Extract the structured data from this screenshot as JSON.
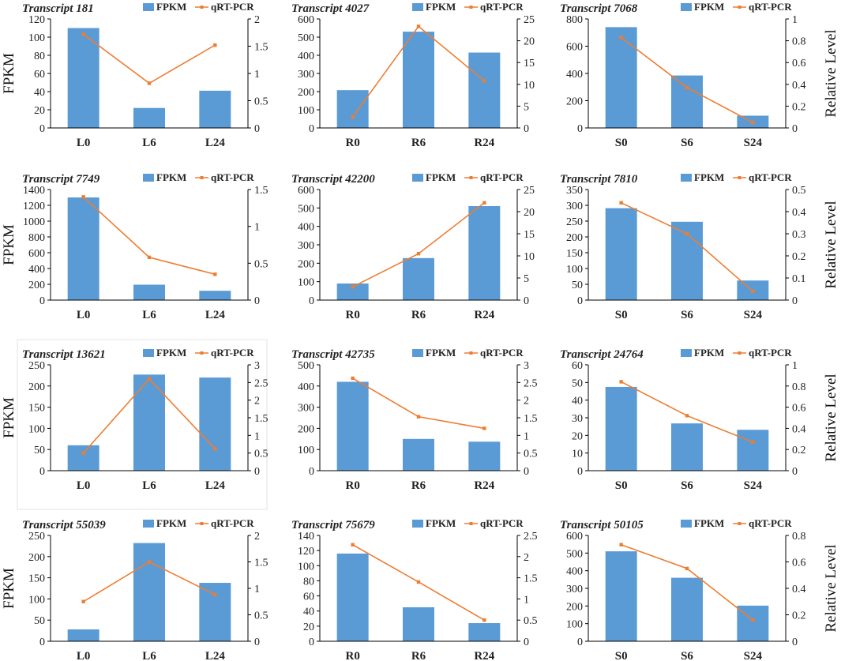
{
  "figure": {
    "left_axis_label": "FPKM",
    "right_axis_label": "Relative Level",
    "legend": {
      "bar": "FPKM",
      "line": "qRT-PCR"
    },
    "colors": {
      "bar": "#5b9bd5",
      "line": "#ed7d31",
      "axis": "#000000"
    }
  },
  "chart_data": [
    {
      "type": "bar+line",
      "title": "Transcript 181",
      "categories": [
        "L0",
        "L6",
        "L24"
      ],
      "series": [
        {
          "name": "FPKM",
          "axis": "left",
          "values": [
            110,
            22,
            41
          ]
        },
        {
          "name": "qRT-PCR",
          "axis": "right",
          "values": [
            1.72,
            0.82,
            1.52
          ]
        }
      ],
      "ylim_left": [
        0,
        120
      ],
      "yticks_left": [
        "0",
        "20",
        "40",
        "60",
        "80",
        "100",
        "120"
      ],
      "ylim_right": [
        0,
        2
      ],
      "yticks_right": [
        "0",
        "0.5",
        "1",
        "1.5",
        "2"
      ]
    },
    {
      "type": "bar+line",
      "title": "Transcript 4027",
      "categories": [
        "R0",
        "R6",
        "R24"
      ],
      "series": [
        {
          "name": "FPKM",
          "axis": "left",
          "values": [
            208,
            530,
            415
          ]
        },
        {
          "name": "qRT-PCR",
          "axis": "right",
          "values": [
            2.5,
            23.3,
            10.8
          ]
        }
      ],
      "ylim_left": [
        0,
        600
      ],
      "yticks_left": [
        "0",
        "100",
        "200",
        "300",
        "400",
        "500",
        "600"
      ],
      "ylim_right": [
        0,
        25
      ],
      "yticks_right": [
        "0",
        "5",
        "10",
        "15",
        "20",
        "25"
      ]
    },
    {
      "type": "bar+line",
      "title": "Transcript 7068",
      "categories": [
        "S0",
        "S6",
        "S24"
      ],
      "series": [
        {
          "name": "FPKM",
          "axis": "left",
          "values": [
            740,
            385,
            90
          ]
        },
        {
          "name": "qRT-PCR",
          "axis": "right",
          "values": [
            0.83,
            0.37,
            0.05
          ]
        }
      ],
      "ylim_left": [
        0,
        800
      ],
      "yticks_left": [
        "0",
        "200",
        "400",
        "600",
        "800"
      ],
      "ylim_right": [
        0,
        1
      ],
      "yticks_right": [
        "0",
        "0.2",
        "0.4",
        "0.6",
        "0.8",
        "1"
      ]
    },
    {
      "type": "bar+line",
      "title": "Transcript 7749",
      "categories": [
        "L0",
        "L6",
        "L24"
      ],
      "series": [
        {
          "name": "FPKM",
          "axis": "left",
          "values": [
            1300,
            195,
            118
          ]
        },
        {
          "name": "qRT-PCR",
          "axis": "right",
          "values": [
            1.4,
            0.58,
            0.35
          ]
        }
      ],
      "ylim_left": [
        0,
        1400
      ],
      "yticks_left": [
        "0",
        "200",
        "400",
        "600",
        "800",
        "1000",
        "1200",
        "1400"
      ],
      "ylim_right": [
        0,
        1.5
      ],
      "yticks_right": [
        "0",
        "0.5",
        "1",
        "1.5"
      ]
    },
    {
      "type": "bar+line",
      "title": "Transcript 42200",
      "categories": [
        "R0",
        "R6",
        "R24"
      ],
      "series": [
        {
          "name": "FPKM",
          "axis": "left",
          "values": [
            90,
            228,
            510
          ]
        },
        {
          "name": "qRT-PCR",
          "axis": "right",
          "values": [
            3.0,
            10.5,
            22.0
          ]
        }
      ],
      "ylim_left": [
        0,
        600
      ],
      "yticks_left": [
        "0",
        "100",
        "200",
        "300",
        "400",
        "500",
        "600"
      ],
      "ylim_right": [
        0,
        25
      ],
      "yticks_right": [
        "0",
        "5",
        "10",
        "15",
        "20",
        "25"
      ]
    },
    {
      "type": "bar+line",
      "title": "Transcript 7810",
      "categories": [
        "S0",
        "S6",
        "S24"
      ],
      "series": [
        {
          "name": "FPKM",
          "axis": "left",
          "values": [
            291,
            248,
            62
          ]
        },
        {
          "name": "qRT-PCR",
          "axis": "right",
          "values": [
            0.44,
            0.3,
            0.04
          ]
        }
      ],
      "ylim_left": [
        0,
        350
      ],
      "yticks_left": [
        "0",
        "50",
        "100",
        "150",
        "200",
        "250",
        "300",
        "350"
      ],
      "ylim_right": [
        0,
        0.5
      ],
      "yticks_right": [
        "0",
        "0.1",
        "0.2",
        "0.3",
        "0.4",
        "0.5"
      ]
    },
    {
      "type": "bar+line",
      "title": "Transcript 13621",
      "categories": [
        "L0",
        "L6",
        "L24"
      ],
      "series": [
        {
          "name": "FPKM",
          "axis": "left",
          "values": [
            60,
            227,
            220
          ]
        },
        {
          "name": "qRT-PCR",
          "axis": "right",
          "values": [
            0.5,
            2.6,
            0.62
          ]
        }
      ],
      "ylim_left": [
        0,
        250
      ],
      "yticks_left": [
        "0",
        "50",
        "100",
        "150",
        "200",
        "250"
      ],
      "ylim_right": [
        0,
        3
      ],
      "yticks_right": [
        "0",
        "0.5",
        "1",
        "1.5",
        "2",
        "2.5",
        "3"
      ]
    },
    {
      "type": "bar+line",
      "title": "Transcript 42735",
      "categories": [
        "R0",
        "R6",
        "R24"
      ],
      "series": [
        {
          "name": "FPKM",
          "axis": "left",
          "values": [
            420,
            150,
            137
          ]
        },
        {
          "name": "qRT-PCR",
          "axis": "right",
          "values": [
            2.62,
            1.53,
            1.2
          ]
        }
      ],
      "ylim_left": [
        0,
        500
      ],
      "yticks_left": [
        "0",
        "100",
        "200",
        "300",
        "400",
        "500"
      ],
      "ylim_right": [
        0,
        3
      ],
      "yticks_right": [
        "0",
        "0.5",
        "1",
        "1.5",
        "2",
        "2.5",
        "3"
      ]
    },
    {
      "type": "bar+line",
      "title": "Transcript 24764",
      "categories": [
        "S0",
        "S6",
        "S24"
      ],
      "series": [
        {
          "name": "FPKM",
          "axis": "left",
          "values": [
            47.5,
            26.8,
            23.2
          ]
        },
        {
          "name": "qRT-PCR",
          "axis": "right",
          "values": [
            0.84,
            0.52,
            0.27
          ]
        }
      ],
      "ylim_left": [
        0,
        60
      ],
      "yticks_left": [
        "0",
        "10",
        "20",
        "30",
        "40",
        "50",
        "60"
      ],
      "ylim_right": [
        0,
        1
      ],
      "yticks_right": [
        "0",
        "0.2",
        "0.4",
        "0.6",
        "0.8",
        "1"
      ]
    },
    {
      "type": "bar+line",
      "title": "Transcript 55039",
      "categories": [
        "L0",
        "L6",
        "L24"
      ],
      "series": [
        {
          "name": "FPKM",
          "axis": "left",
          "values": [
            28,
            232,
            138
          ]
        },
        {
          "name": "qRT-PCR",
          "axis": "right",
          "values": [
            0.75,
            1.5,
            0.88
          ]
        }
      ],
      "ylim_left": [
        0,
        250
      ],
      "yticks_left": [
        "0",
        "50",
        "100",
        "150",
        "200",
        "250"
      ],
      "ylim_right": [
        0,
        2
      ],
      "yticks_right": [
        "0",
        "0.5",
        "1",
        "1.5",
        "2"
      ]
    },
    {
      "type": "bar+line",
      "title": "Transcript 75679",
      "categories": [
        "R0",
        "R6",
        "R24"
      ],
      "series": [
        {
          "name": "FPKM",
          "axis": "left",
          "values": [
            116,
            45,
            24
          ]
        },
        {
          "name": "qRT-PCR",
          "axis": "right",
          "values": [
            2.28,
            1.4,
            0.5
          ]
        }
      ],
      "ylim_left": [
        0,
        140
      ],
      "yticks_left": [
        "0",
        "20",
        "40",
        "60",
        "80",
        "100",
        "120",
        "140"
      ],
      "ylim_right": [
        0,
        2.5
      ],
      "yticks_right": [
        "0",
        "0.5",
        "1",
        "1.5",
        "2",
        "2.5"
      ]
    },
    {
      "type": "bar+line",
      "title": "Transcript 50105",
      "categories": [
        "S0",
        "S6",
        "S24"
      ],
      "series": [
        {
          "name": "FPKM",
          "axis": "left",
          "values": [
            510,
            360,
            202
          ]
        },
        {
          "name": "qRT-PCR",
          "axis": "right",
          "values": [
            0.73,
            0.55,
            0.16
          ]
        }
      ],
      "ylim_left": [
        0,
        600
      ],
      "yticks_left": [
        "0",
        "100",
        "200",
        "300",
        "400",
        "500",
        "600"
      ],
      "ylim_right": [
        0,
        0.8
      ],
      "yticks_right": [
        "0",
        "0.2",
        "0.4",
        "0.6",
        "0.8"
      ]
    }
  ]
}
